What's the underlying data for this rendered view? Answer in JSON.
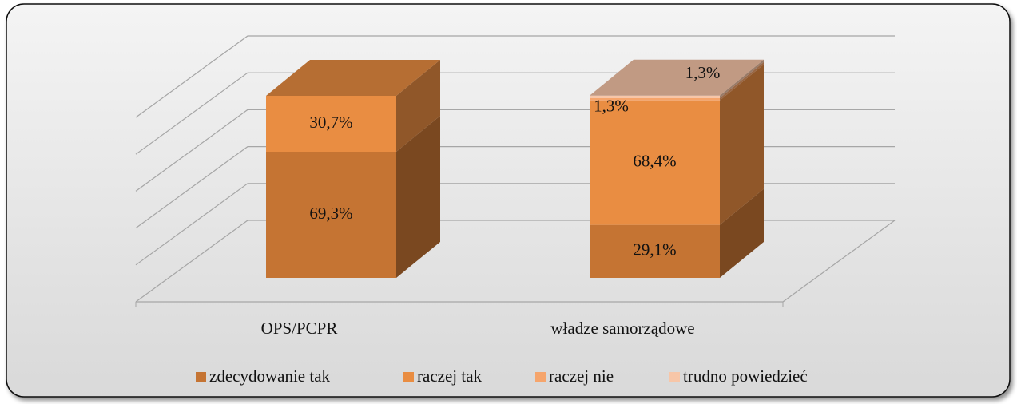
{
  "chart_data": {
    "type": "bar3d_stacked",
    "categories": [
      "OPS/PCPR",
      "władze samorządowe"
    ],
    "series": [
      {
        "name": "zdecydowanie tak",
        "color": "#c57433",
        "values": [
          69.3,
          29.1
        ],
        "value_labels": [
          "69,3%",
          "29,1%"
        ]
      },
      {
        "name": "raczej tak",
        "color": "#e98d42",
        "values": [
          30.7,
          68.4
        ],
        "value_labels": [
          "30,7%",
          "68,4%"
        ]
      },
      {
        "name": "raczej nie",
        "color": "#f6a56c",
        "values": [
          0,
          1.3
        ],
        "value_labels": [
          null,
          "1,3%"
        ]
      },
      {
        "name": "trudno powiedzieć",
        "color": "#f7c6a8",
        "values": [
          0,
          1.3
        ],
        "value_labels": [
          null,
          "1,3%"
        ]
      }
    ],
    "ylim": [
      0,
      100
    ],
    "yticks": [
      0,
      20,
      40,
      60,
      80,
      100
    ],
    "grid": true,
    "legend": "bottom"
  }
}
